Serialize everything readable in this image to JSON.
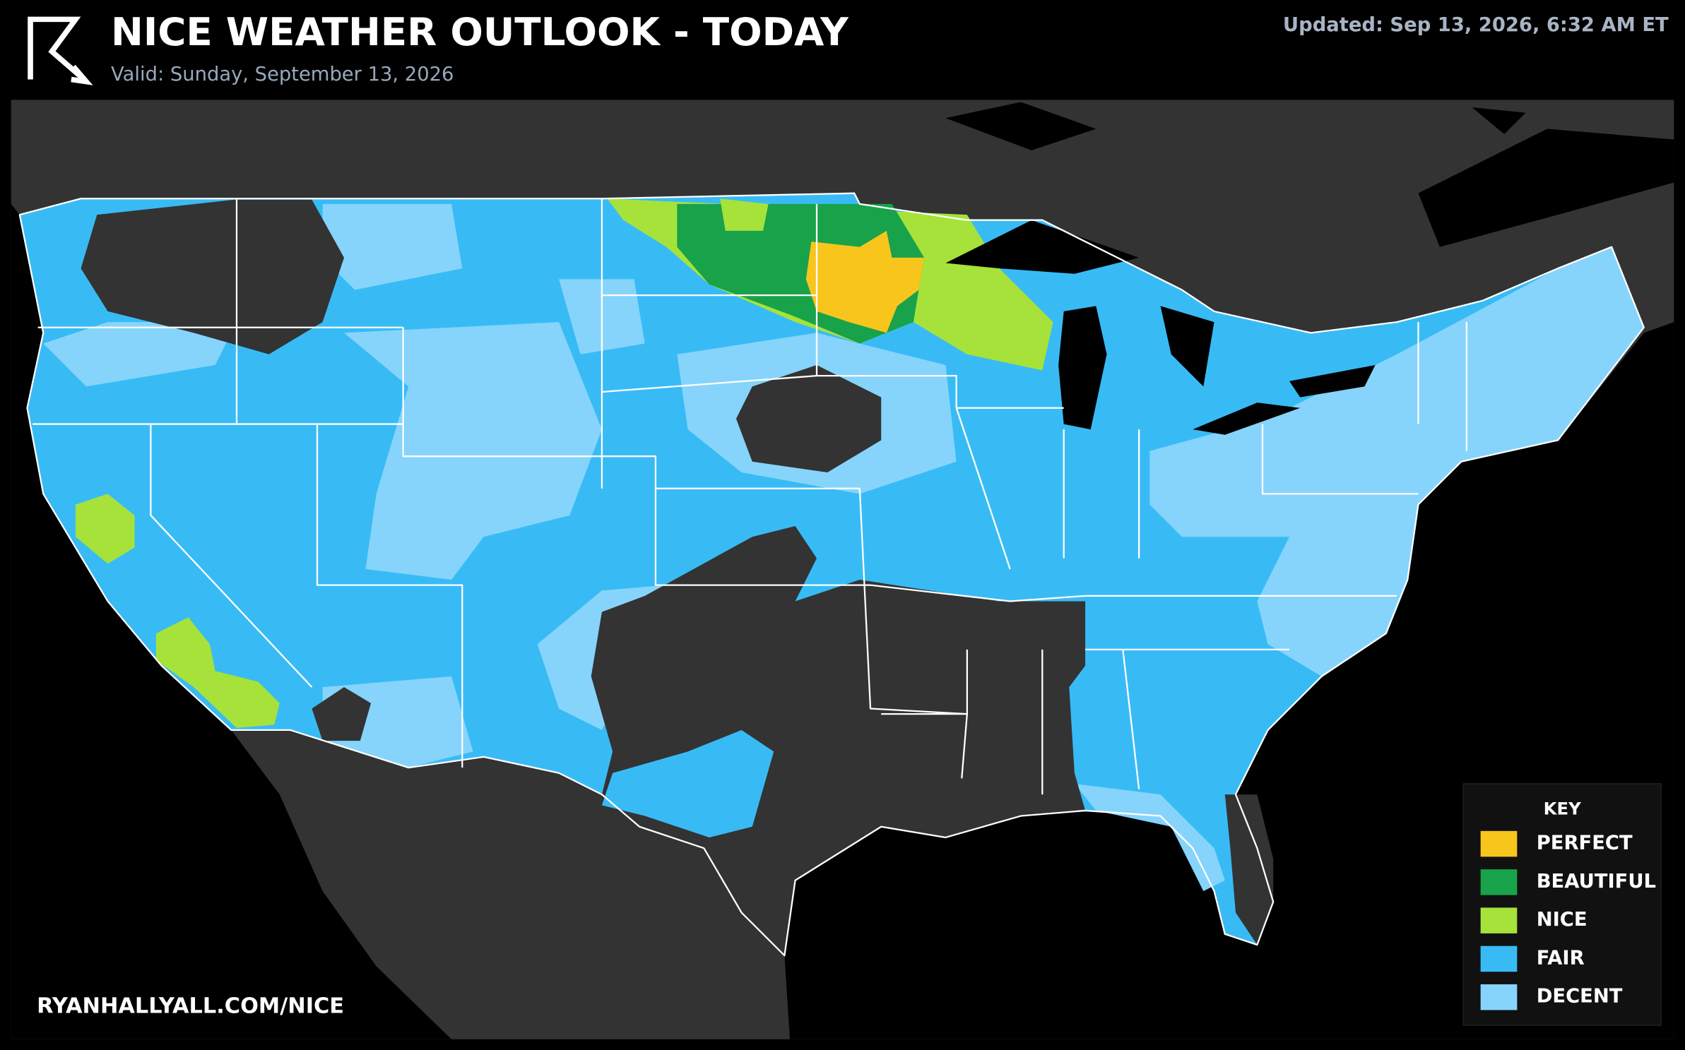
{
  "header": {
    "title": "NICE WEATHER OUTLOOK - TODAY",
    "subtitle": "Valid: Sunday, September 13, 2026",
    "updated": "Updated: Sep 13, 2026, 6:32 AM ET"
  },
  "legend": {
    "title": "KEY",
    "items": [
      {
        "label": "PERFECT",
        "color": "#f8c51c"
      },
      {
        "label": "BEAUTIFUL",
        "color": "#18a24a"
      },
      {
        "label": "NICE",
        "color": "#a6e23a"
      },
      {
        "label": "FAIR",
        "color": "#38bbf5"
      },
      {
        "label": "DECENT",
        "color": "#86d4fb"
      }
    ]
  },
  "footer": {
    "url": "RYANHALLYALL.COM/NICE"
  }
}
